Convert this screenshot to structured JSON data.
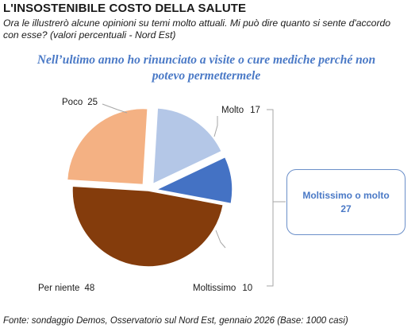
{
  "header": {
    "title": "L'INSOSTENIBILE COSTO DELLA SALUTE",
    "subtitle": "Ora le illustrerò alcune opinioni su temi molto attuali. Mi può dire quanto si sente d'accordo con esse? (valori percentuali - Nord Est)",
    "question": "Nell’ultimo anno ho rinunciato a visite o cure mediche perché non potevo permettermele"
  },
  "chart_data": {
    "type": "pie",
    "title": "Nell’ultimo anno ho rinunciato a visite o cure mediche perché non potevo permettermele",
    "slices": [
      {
        "label": "Molto",
        "value": 17,
        "color": "#b4c7e7"
      },
      {
        "label": "Moltissimo",
        "value": 10,
        "color": "#4472c4"
      },
      {
        "label": "Per niente",
        "value": 48,
        "color": "#843c0c"
      },
      {
        "label": "Poco",
        "value": 25,
        "color": "#f4b183"
      }
    ],
    "callout": {
      "label": "Moltissimo o molto",
      "value": "27"
    }
  },
  "footer": {
    "source": "Fonte: sondaggio Demos, Osservatorio sul Nord Est, gennaio 2026 (Base: 1000 casi)"
  }
}
